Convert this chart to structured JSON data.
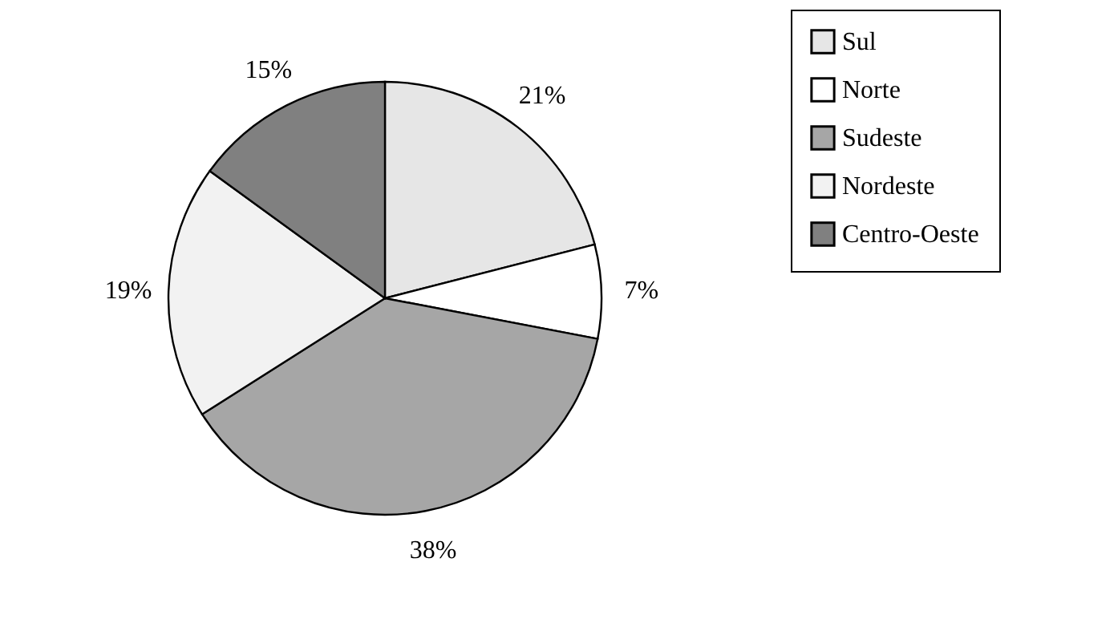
{
  "chart_data": {
    "type": "pie",
    "categories": [
      "Sul",
      "Norte",
      "Sudeste",
      "Nordeste",
      "Centro-Oeste"
    ],
    "values": [
      21,
      7,
      38,
      19,
      15
    ],
    "colors": [
      "#e6e6e6",
      "#ffffff",
      "#a6a6a6",
      "#f2f2f2",
      "#808080"
    ],
    "value_labels": [
      "21%",
      "7%",
      "38%",
      "19%",
      "15%"
    ],
    "legend": "right"
  }
}
